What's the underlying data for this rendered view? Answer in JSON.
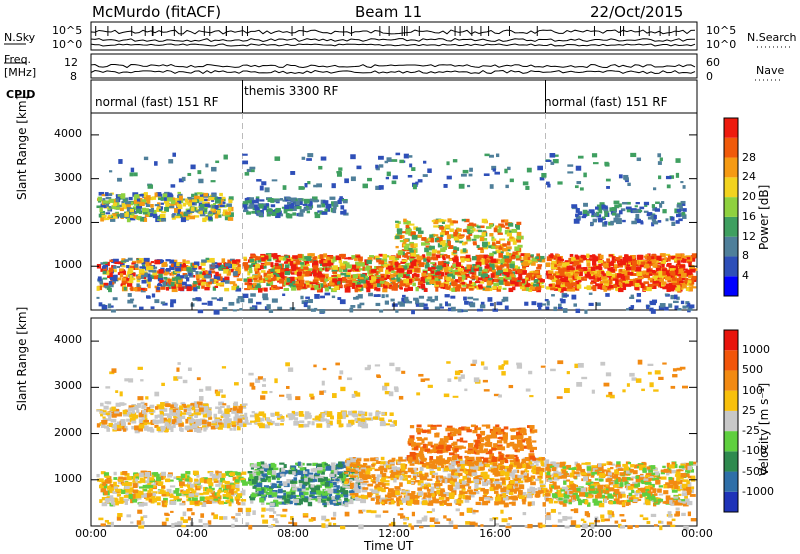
{
  "header": {
    "station": "McMurdo (fitACF)",
    "beam": "Beam 11",
    "date": "22/Oct/2015"
  },
  "status_labels": {
    "nsky": "N.Sky",
    "freq_top": "Freq.",
    "freq_unit": "[MHz]",
    "cpid": "CPID",
    "nsearch": "N.Search",
    "nave": "Nave",
    "left_ticks_top": [
      "10^5",
      "10^0"
    ],
    "right_ticks_top": [
      "10^5",
      "10^0"
    ],
    "left_ticks_freq": [
      "12",
      "8"
    ],
    "right_ticks_nave": [
      "60",
      "0"
    ]
  },
  "cpid_segments": [
    {
      "label": "normal (fast) 151 RF",
      "start_h": 0,
      "end_h": 6
    },
    {
      "label": "themis 3300 RF",
      "start_h": 6,
      "end_h": 18
    },
    {
      "label": "normal (fast) 151 RF",
      "start_h": 18,
      "end_h": 24
    }
  ],
  "chart_data": [
    {
      "type": "heatmap",
      "quantity": "Power",
      "ylabel": "Slant Range [km]",
      "xlabel": "Time UT",
      "xlim": [
        0,
        24
      ],
      "ylim": [
        0,
        4500
      ],
      "x_ticks": [
        "00:00",
        "04:00",
        "08:00",
        "12:00",
        "16:00",
        "20:00",
        "00:00"
      ],
      "y_ticks": [
        1000,
        2000,
        3000,
        4000
      ],
      "colorbar": {
        "label": "Power [dB]",
        "ticks": [
          4,
          8,
          12,
          16,
          20,
          24,
          28
        ],
        "colors": [
          "#0000ff",
          "#2e4fb8",
          "#4f7f9a",
          "#3f9f60",
          "#8fd13f",
          "#f2d31f",
          "#f59a13",
          "#f05a0a",
          "#ee1b0e"
        ]
      }
    },
    {
      "type": "heatmap",
      "quantity": "Velocity",
      "ylabel": "Slant Range [km]",
      "xlabel": "Time UT",
      "xlim": [
        0,
        24
      ],
      "ylim": [
        0,
        4500
      ],
      "x_ticks": [
        "00:00",
        "04:00",
        "08:00",
        "12:00",
        "16:00",
        "20:00",
        "00:00"
      ],
      "y_ticks": [
        1000,
        2000,
        3000,
        4000
      ],
      "colorbar": {
        "label": "Velocity [m s⁻¹]",
        "ticks": [
          1000,
          500,
          100,
          25,
          -25,
          -100,
          -500,
          -1000
        ],
        "colors": [
          "#1f33b8",
          "#2f6fa8",
          "#2f8a4f",
          "#5fcf3f",
          "#c8c8c8",
          "#f8c00c",
          "#f28a12",
          "#f2550a",
          "#e8140c"
        ]
      }
    }
  ]
}
